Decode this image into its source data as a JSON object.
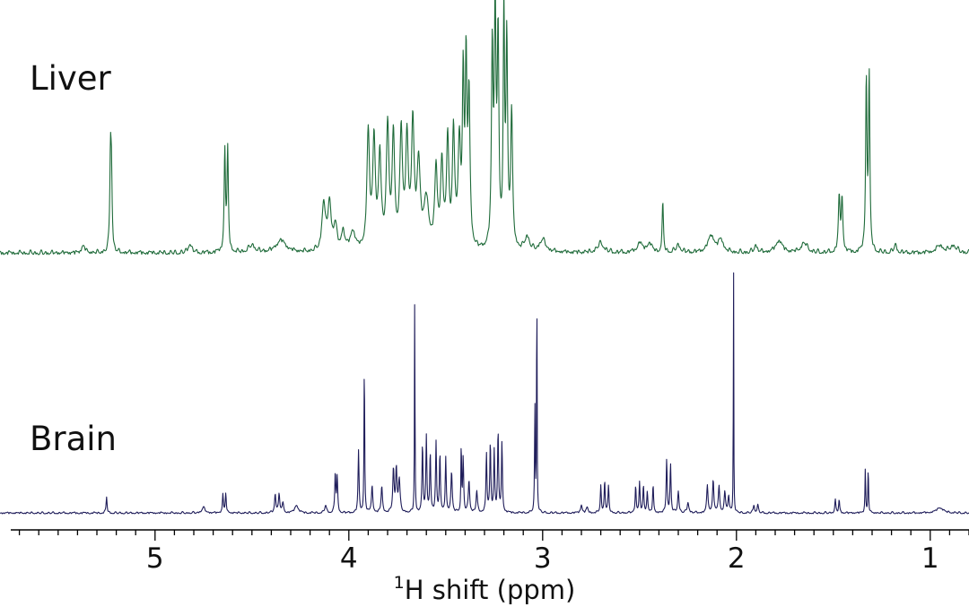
{
  "chart_data": {
    "type": "line",
    "xlabel_sup": "1",
    "xlabel": "H shift (ppm)",
    "xlim": [
      5.8,
      0.8
    ],
    "x_reversed": true,
    "xticks": [
      5,
      4,
      3,
      2,
      1
    ],
    "minor_tick_step": 0.1,
    "grid": false,
    "series": [
      {
        "name": "Liver",
        "color": "#1f6b3a",
        "baseline_noise": 0.02,
        "peaks": [
          [
            5.37,
            0.03,
            0.01
          ],
          [
            5.23,
            0.38,
            0.004
          ],
          [
            5.225,
            0.3,
            0.004
          ],
          [
            4.82,
            0.04,
            0.01
          ],
          [
            4.64,
            0.42,
            0.004
          ],
          [
            4.625,
            0.42,
            0.004
          ],
          [
            4.5,
            0.03,
            0.02
          ],
          [
            4.35,
            0.05,
            0.03
          ],
          [
            4.13,
            0.2,
            0.01
          ],
          [
            4.1,
            0.2,
            0.01
          ],
          [
            4.07,
            0.1,
            0.01
          ],
          [
            4.03,
            0.08,
            0.01
          ],
          [
            3.98,
            0.08,
            0.015
          ],
          [
            3.9,
            0.48,
            0.008
          ],
          [
            3.87,
            0.45,
            0.008
          ],
          [
            3.84,
            0.38,
            0.008
          ],
          [
            3.8,
            0.5,
            0.008
          ],
          [
            3.77,
            0.45,
            0.008
          ],
          [
            3.73,
            0.48,
            0.008
          ],
          [
            3.7,
            0.45,
            0.008
          ],
          [
            3.67,
            0.5,
            0.008
          ],
          [
            3.64,
            0.35,
            0.01
          ],
          [
            3.6,
            0.2,
            0.015
          ],
          [
            3.55,
            0.32,
            0.008
          ],
          [
            3.52,
            0.35,
            0.008
          ],
          [
            3.49,
            0.45,
            0.007
          ],
          [
            3.46,
            0.48,
            0.007
          ],
          [
            3.43,
            0.42,
            0.008
          ],
          [
            3.41,
            0.68,
            0.005
          ],
          [
            3.395,
            0.72,
            0.005
          ],
          [
            3.38,
            0.62,
            0.006
          ],
          [
            3.26,
            0.8,
            0.005
          ],
          [
            3.245,
            0.96,
            0.005
          ],
          [
            3.23,
            0.85,
            0.005
          ],
          [
            3.2,
            0.98,
            0.004
          ],
          [
            3.185,
            0.85,
            0.005
          ],
          [
            3.16,
            0.55,
            0.006
          ],
          [
            3.08,
            0.06,
            0.015
          ],
          [
            3.0,
            0.05,
            0.02
          ],
          [
            2.7,
            0.04,
            0.02
          ],
          [
            2.5,
            0.04,
            0.015
          ],
          [
            2.45,
            0.04,
            0.015
          ],
          [
            2.38,
            0.2,
            0.004
          ],
          [
            2.3,
            0.03,
            0.015
          ],
          [
            2.13,
            0.07,
            0.02
          ],
          [
            2.08,
            0.05,
            0.015
          ],
          [
            1.9,
            0.03,
            0.01
          ],
          [
            1.78,
            0.05,
            0.02
          ],
          [
            1.65,
            0.04,
            0.02
          ],
          [
            1.47,
            0.22,
            0.005
          ],
          [
            1.455,
            0.22,
            0.005
          ],
          [
            1.33,
            0.72,
            0.004
          ],
          [
            1.315,
            0.72,
            0.004
          ],
          [
            1.18,
            0.03,
            0.01
          ],
          [
            0.95,
            0.03,
            0.02
          ],
          [
            0.88,
            0.03,
            0.02
          ]
        ]
      },
      {
        "name": "Brain",
        "color": "#1f1d5a",
        "baseline_noise": 0.008,
        "peaks": [
          [
            5.25,
            0.06,
            0.003
          ],
          [
            4.75,
            0.02,
            0.01
          ],
          [
            4.65,
            0.07,
            0.003
          ],
          [
            4.635,
            0.07,
            0.003
          ],
          [
            4.38,
            0.07,
            0.004
          ],
          [
            4.36,
            0.07,
            0.004
          ],
          [
            4.34,
            0.04,
            0.004
          ],
          [
            4.27,
            0.03,
            0.01
          ],
          [
            4.12,
            0.03,
            0.005
          ],
          [
            4.07,
            0.15,
            0.003
          ],
          [
            4.06,
            0.13,
            0.003
          ],
          [
            3.95,
            0.23,
            0.003
          ],
          [
            3.92,
            0.58,
            0.002
          ],
          [
            3.88,
            0.1,
            0.004
          ],
          [
            3.83,
            0.1,
            0.004
          ],
          [
            3.77,
            0.16,
            0.004
          ],
          [
            3.755,
            0.16,
            0.004
          ],
          [
            3.74,
            0.12,
            0.005
          ],
          [
            3.66,
            0.83,
            0.0015
          ],
          [
            3.62,
            0.25,
            0.003
          ],
          [
            3.6,
            0.28,
            0.003
          ],
          [
            3.58,
            0.22,
            0.003
          ],
          [
            3.55,
            0.26,
            0.003
          ],
          [
            3.53,
            0.22,
            0.003
          ],
          [
            3.5,
            0.2,
            0.003
          ],
          [
            3.47,
            0.15,
            0.004
          ],
          [
            3.42,
            0.26,
            0.002
          ],
          [
            3.41,
            0.2,
            0.003
          ],
          [
            3.38,
            0.12,
            0.004
          ],
          [
            3.34,
            0.08,
            0.004
          ],
          [
            3.29,
            0.22,
            0.003
          ],
          [
            3.27,
            0.26,
            0.003
          ],
          [
            3.25,
            0.23,
            0.003
          ],
          [
            3.23,
            0.3,
            0.003
          ],
          [
            3.21,
            0.26,
            0.003
          ],
          [
            3.04,
            0.4,
            0.002
          ],
          [
            3.03,
            0.93,
            0.0015
          ],
          [
            2.8,
            0.03,
            0.005
          ],
          [
            2.77,
            0.02,
            0.005
          ],
          [
            2.7,
            0.1,
            0.003
          ],
          [
            2.68,
            0.12,
            0.003
          ],
          [
            2.66,
            0.1,
            0.003
          ],
          [
            2.52,
            0.1,
            0.003
          ],
          [
            2.5,
            0.11,
            0.003
          ],
          [
            2.48,
            0.1,
            0.003
          ],
          [
            2.46,
            0.08,
            0.003
          ],
          [
            2.43,
            0.1,
            0.003
          ],
          [
            2.36,
            0.2,
            0.003
          ],
          [
            2.34,
            0.18,
            0.003
          ],
          [
            2.3,
            0.08,
            0.004
          ],
          [
            2.25,
            0.04,
            0.005
          ],
          [
            2.15,
            0.1,
            0.004
          ],
          [
            2.12,
            0.12,
            0.004
          ],
          [
            2.09,
            0.1,
            0.004
          ],
          [
            2.06,
            0.08,
            0.004
          ],
          [
            2.04,
            0.06,
            0.004
          ],
          [
            2.015,
            1.0,
            0.0012
          ],
          [
            1.91,
            0.03,
            0.004
          ],
          [
            1.89,
            0.03,
            0.004
          ],
          [
            1.49,
            0.05,
            0.003
          ],
          [
            1.47,
            0.05,
            0.003
          ],
          [
            1.335,
            0.17,
            0.002
          ],
          [
            1.32,
            0.17,
            0.002
          ],
          [
            0.95,
            0.02,
            0.02
          ]
        ]
      }
    ]
  }
}
